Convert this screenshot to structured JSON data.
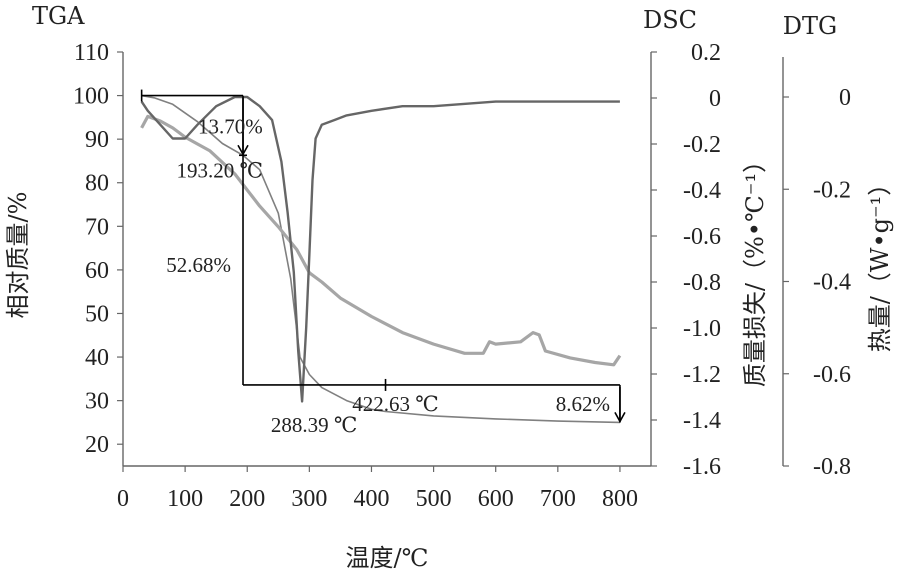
{
  "chart_data": {
    "type": "line",
    "x_axis": {
      "label": "温度/℃",
      "range": [
        0,
        850
      ],
      "ticks": [
        0,
        100,
        200,
        300,
        400,
        500,
        600,
        700,
        800
      ]
    },
    "y_left": {
      "name": "TGA",
      "label": "相对质量/%",
      "range": [
        15,
        110
      ],
      "ticks": [
        20,
        30,
        40,
        50,
        60,
        70,
        80,
        90,
        100,
        110
      ]
    },
    "y_right1": {
      "name": "DSC",
      "label": "质量损失/（%•℃⁻¹）",
      "range": [
        -1.6,
        0.2
      ],
      "ticks": [
        "0.2",
        "0",
        "-0.2",
        "-0.4",
        "-0.6",
        "-0.8",
        "-1.0",
        "-1.2",
        "-1.4",
        "-1.6"
      ]
    },
    "y_right2": {
      "name": "DTG",
      "label": "热量/（W•g⁻¹）",
      "range": [
        -0.8,
        0.2
      ],
      "ticks": [
        "0",
        "-0.2",
        "-0.4",
        "-0.6",
        "-0.8"
      ]
    },
    "series": [
      {
        "color": "#808080",
        "axis": "left",
        "x": [
          30,
          50,
          80,
          120,
          160,
          193.2,
          220,
          250,
          270,
          285,
          300,
          320,
          360,
          400,
          422.63,
          500,
          600,
          700,
          800
        ],
        "y": [
          100,
          99.5,
          98,
          94,
          89,
          86.3,
          83,
          73,
          58,
          40,
          36,
          33,
          30,
          28,
          27.5,
          26.5,
          25.8,
          25.3,
          25
        ]
      },
      {
        "color": "#a6a6a6",
        "axis": "dsc",
        "x": [
          30,
          40,
          60,
          80,
          100,
          120,
          140,
          160,
          180,
          200,
          220,
          250,
          280,
          300,
          320,
          350,
          400,
          450,
          500,
          550,
          580,
          590,
          600,
          640,
          660,
          670,
          680,
          720,
          760,
          790,
          800
        ],
        "y": [
          -0.13,
          -0.08,
          -0.1,
          -0.13,
          -0.17,
          -0.2,
          -0.23,
          -0.28,
          -0.33,
          -0.4,
          -0.47,
          -0.56,
          -0.66,
          -0.76,
          -0.8,
          -0.87,
          -0.95,
          -1.02,
          -1.07,
          -1.11,
          -1.11,
          -1.06,
          -1.07,
          -1.06,
          -1.02,
          -1.03,
          -1.1,
          -1.13,
          -1.15,
          -1.16,
          -1.12
        ]
      },
      {
        "color": "#666666",
        "axis": "dtg",
        "x": [
          30,
          40,
          60,
          80,
          100,
          120,
          150,
          180,
          200,
          220,
          240,
          255,
          265,
          275,
          282,
          288.39,
          295,
          300,
          305,
          310,
          320,
          340,
          360,
          400,
          450,
          500,
          600,
          700,
          800
        ],
        "y": [
          -0.01,
          -0.03,
          -0.06,
          -0.09,
          -0.09,
          -0.06,
          -0.02,
          0.0,
          0.0,
          -0.02,
          -0.05,
          -0.14,
          -0.25,
          -0.38,
          -0.55,
          -0.66,
          -0.5,
          -0.34,
          -0.18,
          -0.09,
          -0.06,
          -0.05,
          -0.04,
          -0.03,
          -0.02,
          -0.02,
          -0.01,
          -0.01,
          -0.01
        ]
      }
    ],
    "annotations": [
      {
        "text": "13.70%"
      },
      {
        "text": "193.20 ℃"
      },
      {
        "text": "52.68%"
      },
      {
        "text": "288.39 ℃"
      },
      {
        "text": "422.63 ℃"
      },
      {
        "text": "8.62%"
      }
    ]
  }
}
